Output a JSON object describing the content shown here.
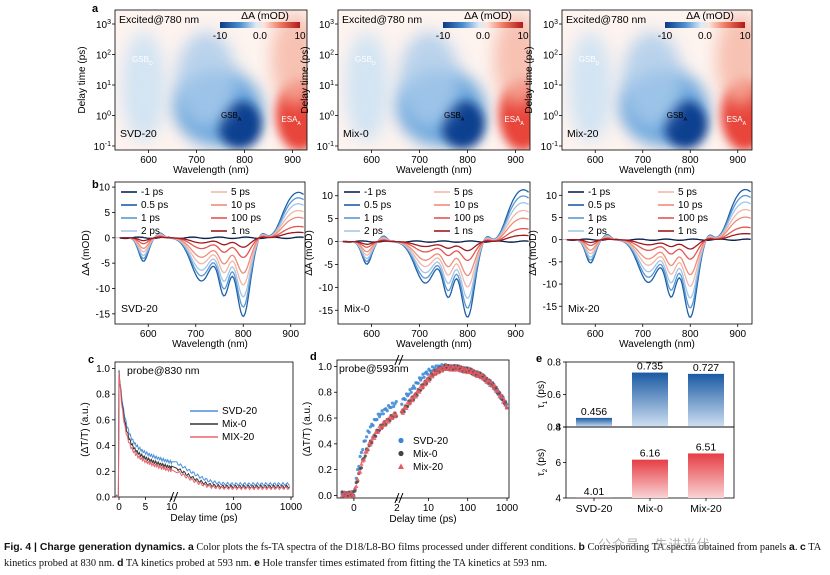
{
  "figure": {
    "panel_labels": {
      "a": "a",
      "b": "b",
      "c": "c",
      "d": "d",
      "e": "e"
    },
    "caption": {
      "prefix": "Fig. 4 | Charge generation dynamics.",
      "a_label": "a",
      "a_text": " Color plots the fs-TA spectra of the D18/L8-BO films processed under different conditions.",
      "b_label": "b",
      "b_text": " Corresponding TA spectra obtained from panels ",
      "b_ref": "a",
      "c_label": "c",
      "c_text": " TA kinetics probed at 830 nm.",
      "d_label": "d",
      "d_text": " TA kinetics probed at 593 nm.",
      "e_label": "e",
      "e_text": " Hole transfer times estimated from fitting the TA kinetics at 593 nm."
    },
    "watermark": "公众号 · 先进光伏"
  },
  "chart_data": [
    {
      "id": "a1",
      "type": "heatmap",
      "label": "SVD-20",
      "header": "Excited@780 nm",
      "colorbar_title": "ΔA (mOD)",
      "colorbar_ticks": [
        "-10",
        "0.0",
        "10"
      ],
      "xlabel": "Wavelength (nm)",
      "ylabel": "Delay time (ps)",
      "xticks": [
        "600",
        "700",
        "800",
        "900"
      ],
      "yticks": [
        "10^-1",
        "10^0",
        "10^1",
        "10^2",
        "10^3"
      ],
      "annotations": [
        {
          "base": "GSB",
          "sub": "D"
        },
        {
          "base": "GSB",
          "sub": "A"
        },
        {
          "base": "ESA",
          "sub": "A"
        }
      ],
      "xlim": [
        530,
        930
      ]
    },
    {
      "id": "a2",
      "type": "heatmap",
      "label": "Mix-0",
      "header": "Excited@780 nm",
      "colorbar_title": "ΔA (mOD)",
      "colorbar_ticks": [
        "-10",
        "0.0",
        "10"
      ],
      "xlabel": "Wavelength (nm)",
      "ylabel": "Delay time (ps)",
      "xticks": [
        "600",
        "700",
        "800",
        "900"
      ],
      "yticks": [
        "10^-1",
        "10^0",
        "10^1",
        "10^2",
        "10^3"
      ],
      "annotations": [
        {
          "base": "GSB",
          "sub": "D"
        },
        {
          "base": "GSB",
          "sub": "A"
        },
        {
          "base": "ESA",
          "sub": "A"
        }
      ],
      "xlim": [
        530,
        930
      ]
    },
    {
      "id": "a3",
      "type": "heatmap",
      "label": "Mix-20",
      "header": "Excited@780 nm",
      "colorbar_title": "ΔA (mOD)",
      "colorbar_ticks": [
        "-10",
        "0.0",
        "10"
      ],
      "xlabel": "Wavelength (nm)",
      "ylabel": "Delay time (ps)",
      "xticks": [
        "600",
        "700",
        "800",
        "900"
      ],
      "yticks": [
        "10^-1",
        "10^0",
        "10^1",
        "10^2",
        "10^3"
      ],
      "annotations": [
        {
          "base": "GSB",
          "sub": "D"
        },
        {
          "base": "GSB",
          "sub": "A"
        },
        {
          "base": "ESA",
          "sub": "A"
        }
      ],
      "xlim": [
        530,
        930
      ]
    },
    {
      "id": "b1",
      "type": "line",
      "label": "SVD-20",
      "xlabel": "Wavelength (nm)",
      "ylabel": "ΔA (mOD)",
      "xticks": [
        "600",
        "700",
        "800",
        "900"
      ],
      "yticks": [
        "-15",
        "-10",
        "-5",
        "0",
        "5",
        "10"
      ],
      "xlim": [
        530,
        930
      ],
      "ylim": [
        -17,
        11
      ],
      "legend": [
        "-1 ps",
        "0.5 ps",
        "1 ps",
        "2 ps",
        "5 ps",
        "10 ps",
        "100 ps",
        "1 ns"
      ],
      "series_scale": [
        0,
        1.0,
        0.88,
        0.75,
        0.6,
        0.45,
        0.25,
        0.12
      ],
      "peak_gsb": -15.5,
      "peak_esa": 9.5
    },
    {
      "id": "b2",
      "type": "line",
      "label": "Mix-0",
      "xlabel": "Wavelength (nm)",
      "ylabel": "ΔA (mOD)",
      "xticks": [
        "600",
        "700",
        "800",
        "900"
      ],
      "yticks": [
        "-15",
        "-10",
        "-5",
        "0",
        "5",
        "10"
      ],
      "xlim": [
        530,
        930
      ],
      "ylim": [
        -18,
        13
      ],
      "legend": [
        "-1 ps",
        "0.5 ps",
        "1 ps",
        "2 ps",
        "5 ps",
        "10 ps",
        "100 ps",
        "1 ns"
      ],
      "series_scale": [
        0,
        1.0,
        0.88,
        0.75,
        0.6,
        0.45,
        0.25,
        0.12
      ],
      "peak_gsb": -16.5,
      "peak_esa": 12
    },
    {
      "id": "b3",
      "type": "line",
      "label": "Mix-20",
      "xlabel": "Wavelength (nm)",
      "ylabel": "ΔA (mOD)",
      "xticks": [
        "600",
        "700",
        "800",
        "900"
      ],
      "yticks": [
        "-15",
        "-10",
        "-5",
        "0",
        "5",
        "10"
      ],
      "xlim": [
        530,
        930
      ],
      "ylim": [
        -19,
        13
      ],
      "legend": [
        "-1 ps",
        "0.5 ps",
        "1 ps",
        "2 ps",
        "5 ps",
        "10 ps",
        "100 ps",
        "1 ns"
      ],
      "series_scale": [
        0,
        1.0,
        0.88,
        0.75,
        0.6,
        0.45,
        0.25,
        0.12
      ],
      "peak_gsb": -17.5,
      "peak_esa": 12
    },
    {
      "id": "c",
      "type": "line",
      "title": "probe@830 nm",
      "xlabel": "Delay time (ps)",
      "ylabel": "(ΔT/T) (a.u.)",
      "ylim": [
        0.0,
        1.05
      ],
      "yticks": [
        "0.0",
        "0.2",
        "0.4",
        "0.6",
        "0.8",
        "1.0"
      ],
      "xticks": [
        "0",
        "5",
        "10",
        "100",
        "1000"
      ],
      "series": [
        {
          "name": "SVD-20",
          "color": "#4a90d9",
          "tau": [
            1.2,
            15
          ],
          "amp": [
            0.55,
            0.33
          ],
          "offset": 0.1
        },
        {
          "name": "Mix-0",
          "color": "#333333",
          "tau": [
            1.1,
            13
          ],
          "amp": [
            0.58,
            0.32
          ],
          "offset": 0.08
        },
        {
          "name": "MIX-20",
          "color": "#e8636b",
          "tau": [
            1.0,
            12
          ],
          "amp": [
            0.6,
            0.31
          ],
          "offset": 0.07
        }
      ]
    },
    {
      "id": "d",
      "type": "scatter",
      "title": "probe@593nm",
      "xlabel": "Delay time (ps)",
      "ylabel": "(ΔT/T) (a.u.)",
      "ylim": [
        -0.02,
        1.05
      ],
      "yticks": [
        "0.0",
        "0.2",
        "0.4",
        "0.6",
        "0.8",
        "1.0"
      ],
      "xticks": [
        "0",
        "2",
        "10",
        "100",
        "1000"
      ],
      "series": [
        {
          "name": "SVD-20",
          "color": "#3a86d6",
          "marker": "circle",
          "rise": 0.456
        },
        {
          "name": "Mix-0",
          "color": "#444444",
          "marker": "circle",
          "rise": 0.735
        },
        {
          "name": "Mix-20",
          "color": "#e8585f",
          "marker": "triangle",
          "rise": 0.727
        }
      ]
    },
    {
      "id": "e",
      "type": "bar",
      "categories": [
        "SVD-20",
        "Mix-0",
        "Mix-20"
      ],
      "series": [
        {
          "name": "τ1 (ps)",
          "values": [
            0.456,
            0.735,
            0.727
          ],
          "labels": [
            "0.456",
            "0.735",
            "0.727"
          ],
          "ylim": [
            0.4,
            0.8
          ],
          "yticks": [
            "0.4",
            "0.6",
            "0.8"
          ],
          "color": "#1d5fa8"
        },
        {
          "name": "τ2 (ps)",
          "values": [
            4.01,
            6.16,
            6.51
          ],
          "labels": [
            "4.01",
            "6.16",
            "6.51"
          ],
          "ylim": [
            4,
            8
          ],
          "yticks": [
            "4",
            "6",
            "8"
          ],
          "color": "#e84a52"
        }
      ],
      "ylabels": [
        {
          "base": "τ",
          "sub": "1",
          "unit": " (ps)"
        },
        {
          "base": "τ",
          "sub": "2",
          "unit": " (ps)"
        }
      ]
    }
  ]
}
